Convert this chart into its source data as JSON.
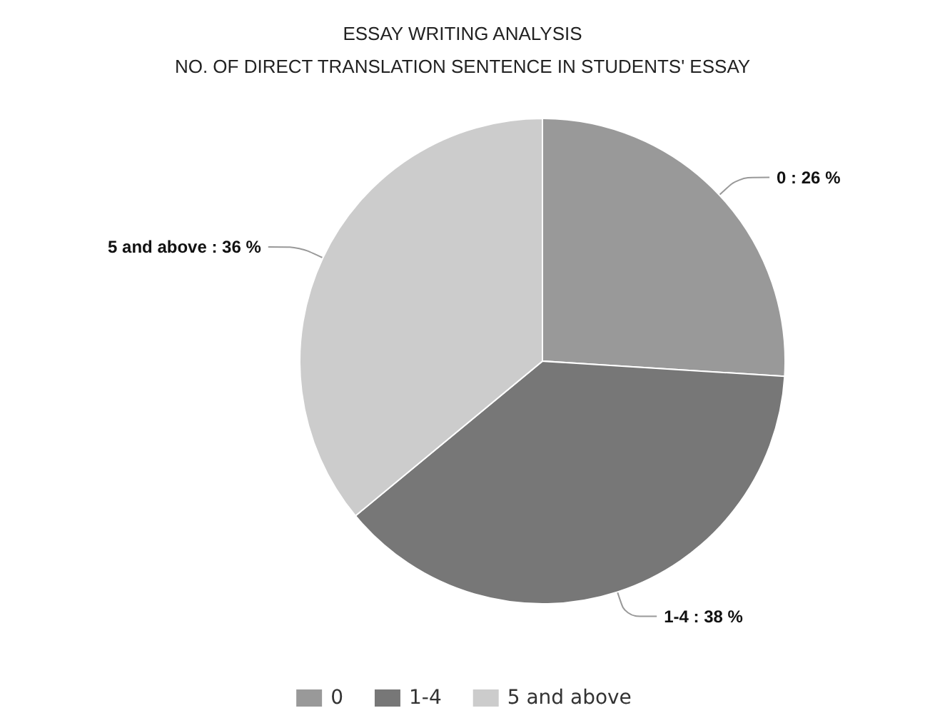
{
  "chart_data": {
    "type": "pie",
    "title": "ESSAY WRITING ANALYSIS",
    "subtitle": "NO. OF DIRECT TRANSLATION SENTENCE IN STUDENTS' ESSAY",
    "categories": [
      "0",
      "1-4",
      "5 and above"
    ],
    "values": [
      26,
      38,
      36
    ],
    "colors": [
      "#999999",
      "#777777",
      "#cccccc"
    ],
    "value_labels": [
      "0 : 26 %",
      "1-4 : 38 %",
      "5 and above : 36 %"
    ],
    "legend": "bottom"
  }
}
